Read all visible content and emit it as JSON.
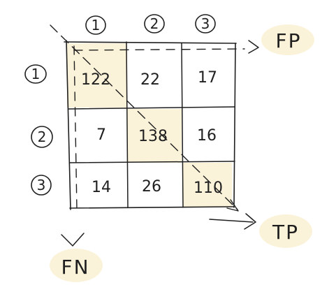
{
  "matrix": {
    "columns": [
      "1",
      "2",
      "3"
    ],
    "rows": [
      {
        "label": "1",
        "values": [
          "122",
          "22",
          "17"
        ]
      },
      {
        "label": "2",
        "values": [
          "7",
          "138",
          "16"
        ]
      },
      {
        "label": "3",
        "values": [
          "14",
          "26",
          "110"
        ]
      }
    ]
  },
  "annotations": {
    "false_positive": "FP",
    "true_positive": "TP",
    "false_negative": "FN"
  },
  "colors": {
    "ink": "#1f1f1f",
    "highlight": "#fbf3d9"
  }
}
